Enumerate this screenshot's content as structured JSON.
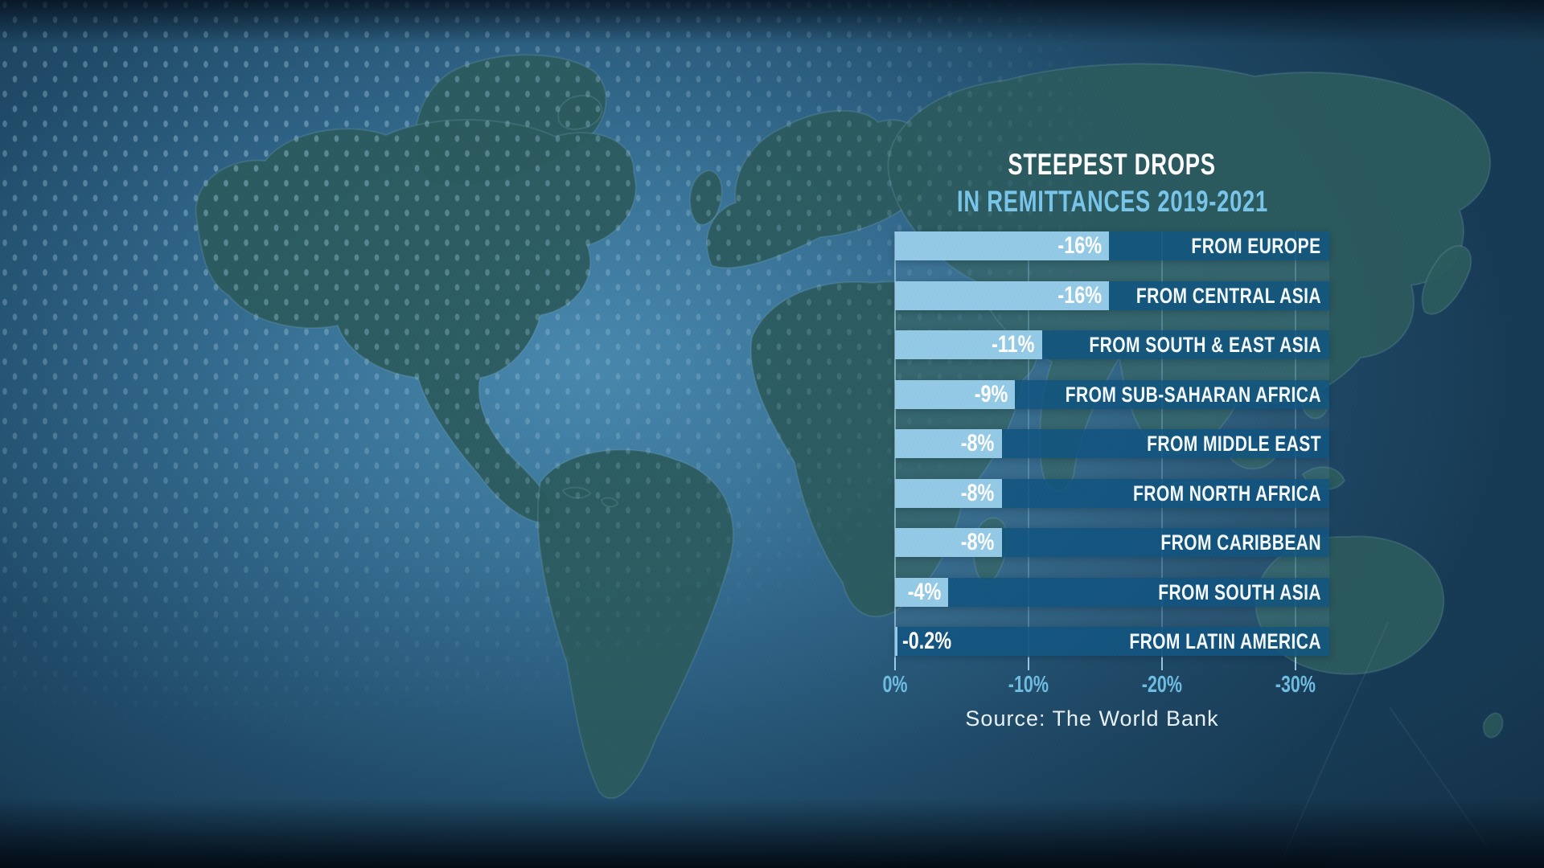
{
  "chart": {
    "title": "STEEPEST DROPS",
    "subtitle": "IN REMITTANCES 2019-2021",
    "source": "Source: The World Bank"
  },
  "chart_data": {
    "type": "bar",
    "orientation": "horizontal",
    "title": "STEEPEST DROPS IN REMITTANCES 2019-2021",
    "categories": [
      "FROM EUROPE",
      "FROM CENTRAL ASIA",
      "FROM SOUTH & EAST ASIA",
      "FROM SUB-SAHARAN AFRICA",
      "FROM MIDDLE EAST",
      "FROM NORTH AFRICA",
      "FROM CARIBBEAN",
      "FROM SOUTH ASIA",
      "FROM LATIN AMERICA"
    ],
    "values": [
      -16,
      -16,
      -11,
      -9,
      -8,
      -8,
      -8,
      -4,
      -0.2
    ],
    "value_labels": [
      "-16%",
      "-16%",
      "-11%",
      "-9%",
      "-8%",
      "-8%",
      "-8%",
      "-4%",
      "-0.2%"
    ],
    "x_ticks": [
      "0%",
      "-10%",
      "-20%",
      "-30%"
    ],
    "x_tick_values": [
      0,
      -10,
      -20,
      -30
    ],
    "xlim": [
      0,
      -32.5
    ],
    "xlabel": "",
    "ylabel": "",
    "legend": false,
    "gridlines": "vertical-at-ticks",
    "source": "Source: The World Bank"
  },
  "colors": {
    "bar_light": "#9dd3ed",
    "bar_dark": "#0e5380",
    "title_white": "#ffffff",
    "accent_blue": "#79c5ea",
    "axis_blue": "#6fbce2",
    "ocean": "#2c5f81",
    "land": "#2b5a5e"
  }
}
